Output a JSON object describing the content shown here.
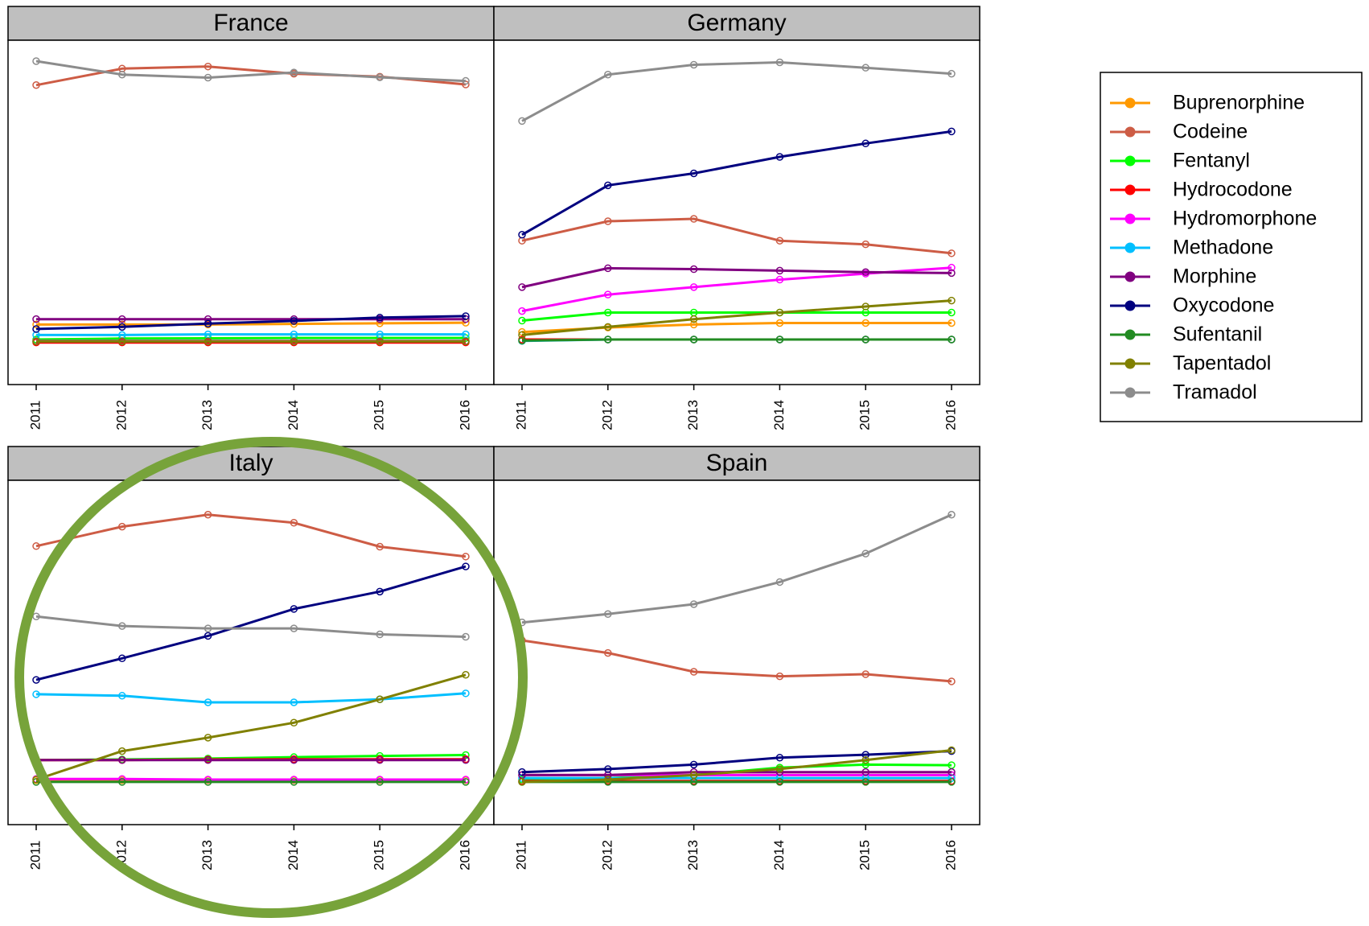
{
  "chart_data": {
    "type": "line",
    "x": [
      "2011",
      "2012",
      "2013",
      "2014",
      "2015",
      "2016"
    ],
    "y_range": [
      0,
      100
    ],
    "grid": false,
    "legend_position": "top-right",
    "series": [
      {
        "name": "Buprenorphine",
        "color": "#FF9900"
      },
      {
        "name": "Codeine",
        "color": "#CD5C45"
      },
      {
        "name": "Fentanyl",
        "color": "#00FF00"
      },
      {
        "name": "Hydrocodone",
        "color": "#FF0000"
      },
      {
        "name": "Hydromorphone",
        "color": "#FF00FF"
      },
      {
        "name": "Methadone",
        "color": "#00BFFF"
      },
      {
        "name": "Morphine",
        "color": "#800080"
      },
      {
        "name": "Oxycodone",
        "color": "#00007F"
      },
      {
        "name": "Sufentanil",
        "color": "#228B22"
      },
      {
        "name": "Tapentadol",
        "color": "#808000"
      },
      {
        "name": "Tramadol",
        "color": "#8C8C8C"
      }
    ],
    "panels": [
      {
        "title": "France",
        "values": {
          "Buprenorphine": [
            12,
            12,
            12,
            12.2,
            12.4,
            12.6
          ],
          "Codeine": [
            92,
            97.5,
            98.2,
            95.8,
            94.8,
            92.2
          ],
          "Fentanyl": [
            7,
            7.3,
            7.4,
            7.5,
            7.5,
            7.5
          ],
          "Hydrocodone": [
            6,
            6,
            6,
            6,
            6,
            6
          ],
          "Hydromorphone": [
            6.5,
            6.5,
            6.5,
            6.5,
            6.5,
            6.5
          ],
          "Methadone": [
            8.5,
            8.5,
            8.7,
            8.7,
            8.7,
            8.7
          ],
          "Morphine": [
            13.8,
            13.8,
            13.8,
            13.8,
            13.8,
            13.8
          ],
          "Oxycodone": [
            10.5,
            11.2,
            12.3,
            13.2,
            14.3,
            14.8
          ],
          "Sufentanil": [
            6.4,
            6.4,
            6.4,
            6.4,
            6.4,
            6.4
          ],
          "Tapentadol": [
            6.4,
            6.4,
            6.4,
            6.4,
            6.4,
            6.4
          ],
          "Tramadol": [
            100,
            95.5,
            94.5,
            96.2,
            94.6,
            93.4
          ]
        }
      },
      {
        "title": "Germany",
        "values": {
          "Buprenorphine": [
            9.5,
            11,
            12,
            12.5,
            12.5,
            12.5
          ],
          "Codeine": [
            40,
            46.5,
            47.3,
            40,
            38.8,
            35.8
          ],
          "Fentanyl": [
            13.3,
            16,
            16,
            16,
            16,
            16
          ],
          "Hydrocodone": [
            7,
            7,
            7,
            7,
            7,
            7
          ],
          "Hydromorphone": [
            16.5,
            22,
            24.5,
            27,
            29,
            31
          ],
          "Methadone": [
            6.5,
            7,
            7,
            7,
            7,
            7
          ],
          "Morphine": [
            24.5,
            30.8,
            30.5,
            30,
            29.5,
            29.2
          ],
          "Oxycodone": [
            42,
            58.5,
            62.5,
            68,
            72.5,
            76.5
          ],
          "Sufentanil": [
            6.6,
            7,
            7,
            7,
            7,
            7
          ],
          "Tapentadol": [
            8.5,
            11.2,
            13.8,
            16,
            18,
            20
          ],
          "Tramadol": [
            80,
            95.5,
            98.8,
            99.6,
            97.8,
            95.8
          ]
        }
      },
      {
        "title": "Italy",
        "values": {
          "Buprenorphine": [
            6.8,
            6.8,
            6.8,
            6.8,
            6.8,
            6.8
          ],
          "Codeine": [
            85,
            91.5,
            95.5,
            92.8,
            84.8,
            81.5
          ],
          "Fentanyl": [
            13.5,
            13.7,
            14,
            14.5,
            14.9,
            15.2
          ],
          "Hydrocodone": [
            13.5,
            13.5,
            13.7,
            13.8,
            13.8,
            13.8
          ],
          "Hydromorphone": [
            7.2,
            7.2,
            7,
            7,
            7,
            7
          ],
          "Methadone": [
            35.5,
            35,
            32.8,
            32.8,
            33.8,
            35.8
          ],
          "Morphine": [
            13.5,
            13.5,
            13.5,
            13.5,
            13.5,
            13.5
          ],
          "Oxycodone": [
            40.3,
            47.5,
            55,
            64,
            69.8,
            78.2
          ],
          "Sufentanil": [
            6.2,
            6.2,
            6.2,
            6.2,
            6.2,
            6.2
          ],
          "Tapentadol": [
            7,
            16.5,
            21,
            26,
            33.8,
            42
          ],
          "Tramadol": [
            61.5,
            58.3,
            57.5,
            57.5,
            55.5,
            54.7
          ]
        }
      },
      {
        "title": "Spain",
        "values": {
          "Buprenorphine": [
            8.5,
            8.5,
            8.5,
            8.5,
            8.5,
            8.5
          ],
          "Codeine": [
            53.5,
            49.3,
            43,
            41.5,
            42.2,
            39.8
          ],
          "Fentanyl": [
            7,
            7.5,
            8.5,
            11,
            12,
            11.8
          ],
          "Hydrocodone": [
            6.5,
            6.5,
            6.5,
            6.5,
            6.5,
            6.5
          ],
          "Hydromorphone": [
            8.5,
            8.5,
            8.5,
            8.5,
            8.5,
            8.5
          ],
          "Methadone": [
            7.5,
            7.5,
            7.5,
            7.5,
            7.5,
            7.5
          ],
          "Morphine": [
            8.5,
            8.5,
            9.5,
            9.5,
            9.5,
            9.5
          ],
          "Oxycodone": [
            9.5,
            10.5,
            12,
            14.3,
            15.3,
            16.5
          ],
          "Sufentanil": [
            6.2,
            6.2,
            6.2,
            6.2,
            6.2,
            6.2
          ],
          "Tapentadol": [
            6.2,
            7,
            8.5,
            10.5,
            13.5,
            16.8
          ],
          "Tramadol": [
            59.5,
            62.3,
            65.6,
            73,
            82.5,
            95.5
          ]
        }
      }
    ]
  }
}
